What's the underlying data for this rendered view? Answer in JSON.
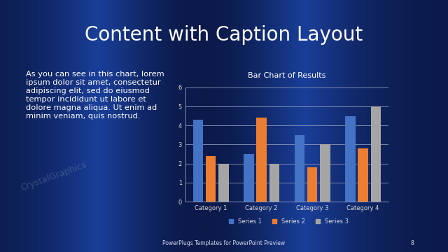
{
  "chart_data": {
    "type": "bar",
    "title": "Bar Chart of Results",
    "categories": [
      "Category 1",
      "Category 2",
      "Category 3",
      "Category 4"
    ],
    "series": [
      {
        "name": "Series 1",
        "color": "#4472c4",
        "values": [
          4.3,
          2.5,
          3.5,
          4.5
        ]
      },
      {
        "name": "Series 2",
        "color": "#ed7d31",
        "values": [
          2.4,
          4.4,
          1.8,
          2.8
        ]
      },
      {
        "name": "Series 3",
        "color": "#a5a5a5",
        "values": [
          2,
          2,
          3,
          5
        ]
      }
    ],
    "ylim": [
      0,
      6
    ],
    "yticks": [
      0,
      1,
      2,
      3,
      4,
      5,
      6
    ],
    "grid": true,
    "legend": "bottom"
  },
  "slide": {
    "title": "Content with Caption Layout",
    "caption_lines": [
      "As you can see in this chart, lorem",
      "ipsum dolor sit amet, consectetur",
      "adipiscing elit, sed do eiusmod",
      "tempor incididunt ut labore et",
      "dolore magna aliqua. Ut enim ad",
      "minim veniam, quis nostrud."
    ],
    "footer": "PowerPlugs Templates for PowerPoint Preview",
    "page": 8,
    "watermark": "CrystalGraphics"
  }
}
